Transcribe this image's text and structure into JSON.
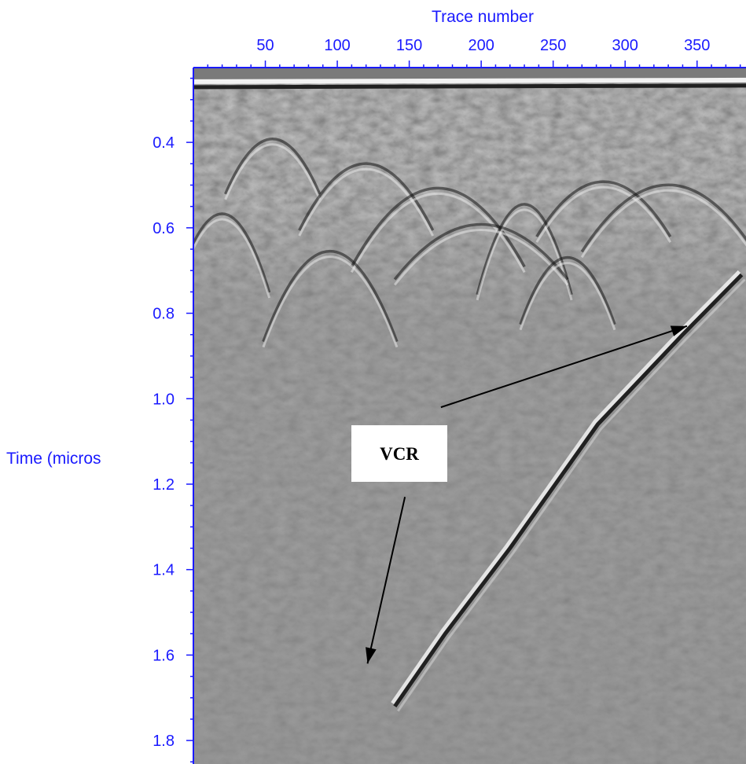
{
  "chart_data": {
    "type": "heatmap",
    "title": "",
    "xlabel": "Trace number",
    "ylabel": "Time (micros",
    "x_ticks": [
      50,
      100,
      150,
      200,
      250,
      300,
      350
    ],
    "y_ticks": [
      "0.4",
      "0.6",
      "0.8",
      "1.0",
      "1.2",
      "1.4",
      "1.6",
      "1.8"
    ],
    "y_tick_values": [
      0.4,
      0.6,
      0.8,
      1.0,
      1.2,
      1.4,
      1.6,
      1.8
    ],
    "xlim": [
      0,
      384
    ],
    "ylim": [
      0.225,
      1.855
    ],
    "x_label_position": "top",
    "colormap": "grayscale",
    "axis_color": "#1a1aff",
    "annotation": {
      "text": "VCR",
      "arrows": [
        {
          "from": {
            "trace": 172,
            "time": 1.02
          },
          "to": {
            "trace": 343,
            "time": 0.83
          }
        },
        {
          "from": {
            "trace": 147,
            "time": 1.23
          },
          "to": {
            "trace": 121,
            "time": 1.62
          }
        }
      ]
    },
    "features": {
      "surface_reflection": {
        "time": 0.28
      },
      "diagonal_reflector": {
        "points": [
          [
            381,
            0.71
          ],
          [
            340,
            0.85
          ],
          [
            281,
            1.06
          ],
          [
            220,
            1.35
          ],
          [
            175,
            1.55
          ],
          [
            140,
            1.72
          ]
        ]
      }
    }
  }
}
